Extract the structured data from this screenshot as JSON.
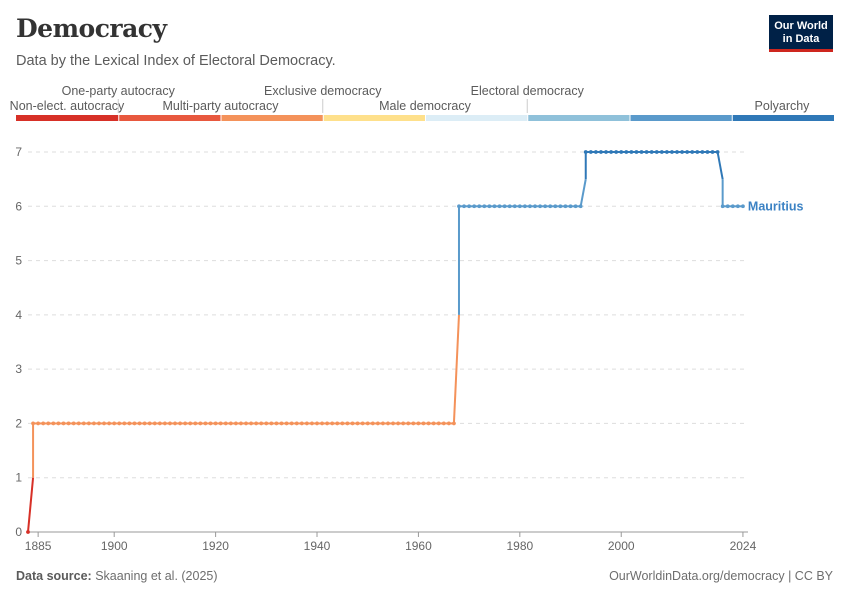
{
  "header": {
    "title": "Democracy",
    "subtitle": "Data by the Lexical Index of Electoral Democracy."
  },
  "logo": {
    "line1": "Our World",
    "line2": "in Data",
    "bg": "#002147",
    "accent": "#ce261e"
  },
  "footer": {
    "source_label": "Data source:",
    "source_text": "Skaaning et al. (2025)",
    "credit": "OurWorldinData.org/democracy | CC BY"
  },
  "chart_data": {
    "type": "line",
    "title": "Democracy",
    "subtitle": "Data by the Lexical Index of Electoral Democracy.",
    "xlabel": "",
    "ylabel": "",
    "xlim": [
      1883,
      2025
    ],
    "ylim": [
      0,
      7
    ],
    "x_ticks": [
      "1885",
      "1900",
      "1920",
      "1940",
      "1960",
      "1980",
      "2000",
      "2024"
    ],
    "y_ticks": [
      "0",
      "1",
      "2",
      "3",
      "4",
      "5",
      "6",
      "7"
    ],
    "grid": "horizontal dashed",
    "color_legend": {
      "position": "top",
      "categories": [
        {
          "label": "Non-elect. autocracy",
          "value": 0,
          "color": "#d73027"
        },
        {
          "label": "One-party autocracy",
          "value": 1,
          "color": "#e8583e"
        },
        {
          "label": "Multi-party autocracy",
          "value": 2,
          "color": "#f4925a"
        },
        {
          "label": "Exclusive democracy",
          "value": 3,
          "color": "#fee08b"
        },
        {
          "label": "Male democracy",
          "value": 4,
          "color": "#dcedf6"
        },
        {
          "label": "Electoral democracy",
          "value": 5,
          "color": "#8fc1da"
        },
        {
          "label": "Polyarchy",
          "value": 6,
          "color": "#5a9acb"
        },
        {
          "label": "",
          "value": 7,
          "color": "#2f78b7"
        }
      ]
    },
    "series": [
      {
        "name": "Mauritius",
        "color": "#3b82c4",
        "segments": [
          {
            "x_start": 1883,
            "x_end": 1883,
            "y": 0
          },
          {
            "x_start": 1884,
            "x_end": 1967,
            "y": 2
          },
          {
            "x_start": 1968,
            "x_end": 1992,
            "y": 6
          },
          {
            "x_start": 1993,
            "x_end": 2019,
            "y": 7
          },
          {
            "x_start": 2020,
            "x_end": 2024,
            "y": 6
          }
        ]
      }
    ]
  }
}
